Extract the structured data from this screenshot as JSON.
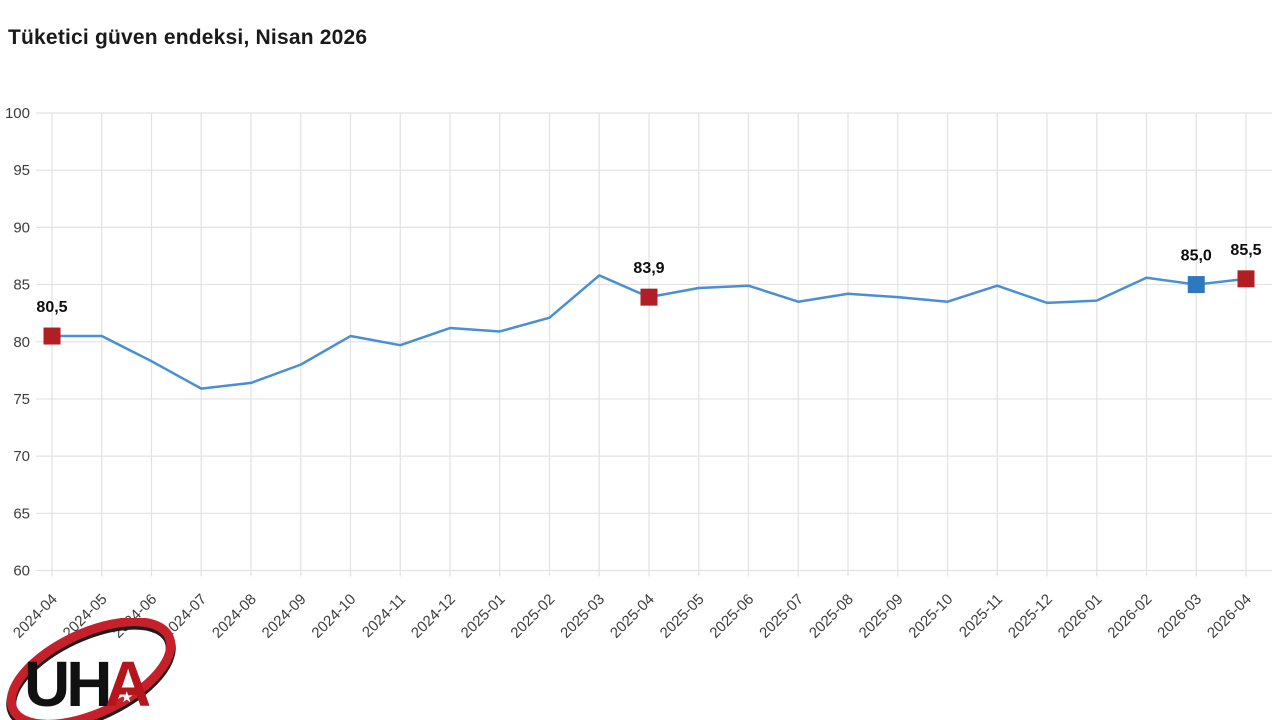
{
  "title": "Tüketici güven endeksi, Nisan 2026",
  "logo": {
    "text_uh": "UH",
    "text_a": "A",
    "star": "★",
    "ring_color": "#c8202a",
    "ring_shadow_color": "#1d1d1d",
    "text_color": "#111111",
    "a_color": "#b5161c"
  },
  "chart_data": {
    "type": "line",
    "title": "Tüketici güven endeksi, Nisan 2026",
    "x": [
      "2024-04",
      "2024-05",
      "2024-06",
      "2024-07",
      "2024-08",
      "2024-09",
      "2024-10",
      "2024-11",
      "2024-12",
      "2025-01",
      "2025-02",
      "2025-03",
      "2025-04",
      "2025-05",
      "2025-06",
      "2025-07",
      "2025-08",
      "2025-09",
      "2025-10",
      "2025-11",
      "2025-12",
      "2026-01",
      "2026-02",
      "2026-03",
      "2026-04"
    ],
    "values": [
      80.5,
      80.5,
      78.3,
      75.9,
      76.4,
      78.0,
      80.5,
      79.7,
      81.2,
      80.9,
      82.1,
      85.8,
      83.9,
      84.7,
      84.9,
      83.5,
      84.2,
      83.9,
      83.5,
      84.9,
      83.4,
      83.6,
      85.6,
      85.0,
      85.5
    ],
    "ylim": [
      60,
      100
    ],
    "yticks": [
      60,
      65,
      70,
      75,
      80,
      85,
      90,
      95,
      100
    ],
    "grid": true,
    "legend": "none",
    "line_color": "#4a8fd4",
    "grid_color": "#e2e2e2",
    "tick_label_color": "#3d3d3d",
    "annotation_color": "#0d0d0d",
    "markers": [
      {
        "x": "2024-04",
        "value": 80.5,
        "label": "80,5",
        "color": "#b11f24"
      },
      {
        "x": "2025-04",
        "value": 83.9,
        "label": "83,9",
        "color": "#b11f24"
      },
      {
        "x": "2026-03",
        "value": 85.0,
        "label": "85,0",
        "color": "#2e79be"
      },
      {
        "x": "2026-04",
        "value": 85.5,
        "label": "85,5",
        "color": "#b11f24"
      }
    ]
  }
}
